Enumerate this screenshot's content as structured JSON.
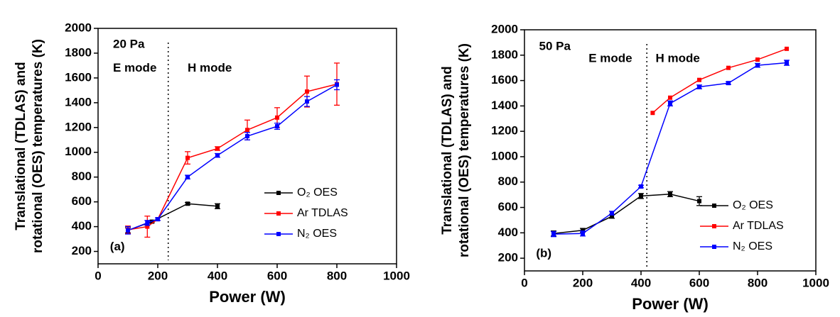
{
  "chart_data": [
    {
      "type": "line",
      "x_label": "Power (W)",
      "y_label": [
        "Translational (TDLAS) and",
        "rotational (OES) temperatures (K)"
      ],
      "xlim": [
        0,
        1000
      ],
      "xticks": [
        0,
        200,
        400,
        600,
        800,
        1000
      ],
      "ylim": [
        100,
        2000
      ],
      "yticks": [
        200,
        400,
        600,
        800,
        1000,
        1200,
        1400,
        1600,
        1800,
        2000
      ],
      "annotations": [
        "20 Pa",
        "E mode",
        "H mode",
        "(a)"
      ],
      "mode_boundary": 235,
      "legend": "lower right",
      "series": [
        {
          "name": "O₂ OES",
          "color": "#000000",
          "x": [
            100,
            180,
            300,
            400
          ],
          "values": [
            370,
            440,
            585,
            565
          ],
          "errors": [
            20,
            10,
            10,
            20
          ]
        },
        {
          "name": "Ar TDLAS",
          "color": "#ff0000",
          "x": [
            100,
            165,
            200,
            300,
            400,
            500,
            600,
            700,
            800
          ],
          "values": [
            375,
            400,
            460,
            955,
            1030,
            1180,
            1280,
            1490,
            1550
          ],
          "errors": [
            30,
            85,
            10,
            50,
            15,
            80,
            80,
            125,
            170
          ]
        },
        {
          "name": "N₂ OES",
          "color": "#0000ff",
          "x": [
            100,
            165,
            200,
            300,
            400,
            500,
            600,
            700,
            800
          ],
          "values": [
            370,
            430,
            460,
            800,
            975,
            1130,
            1210,
            1410,
            1545
          ],
          "errors": [
            30,
            20,
            10,
            15,
            15,
            30,
            25,
            40,
            40
          ]
        }
      ]
    },
    {
      "type": "line",
      "x_label": "Power (W)",
      "y_label": [
        "Translational (TDLAS) and",
        "rotational (OES) temperatures (K)"
      ],
      "xlim": [
        0,
        1000
      ],
      "xticks": [
        0,
        200,
        400,
        600,
        800,
        1000
      ],
      "ylim": [
        100,
        2000
      ],
      "yticks": [
        200,
        400,
        600,
        800,
        1000,
        1200,
        1400,
        1600,
        1800,
        2000
      ],
      "annotations": [
        "50 Pa",
        "E mode",
        "H mode",
        "(b)"
      ],
      "mode_boundary": 420,
      "legend": "lower right",
      "series": [
        {
          "name": "O₂ OES",
          "color": "#000000",
          "x": [
            100,
            200,
            300,
            400,
            500,
            600
          ],
          "values": [
            395,
            420,
            530,
            690,
            705,
            650
          ],
          "errors": [
            20,
            15,
            15,
            20,
            20,
            35
          ]
        },
        {
          "name": "Ar TDLAS",
          "color": "#ff0000",
          "x": [
            440,
            500,
            600,
            700,
            800,
            900
          ],
          "values": [
            1345,
            1465,
            1605,
            1700,
            1765,
            1850
          ]
        },
        {
          "name": "N₂ OES",
          "color": "#0000ff",
          "x": [
            100,
            200,
            300,
            400,
            500,
            600,
            700,
            800,
            900
          ],
          "values": [
            390,
            395,
            555,
            765,
            1420,
            1550,
            1580,
            1720,
            1740
          ],
          "errors": [
            20,
            20,
            15,
            10,
            20,
            15,
            10,
            15,
            20
          ]
        }
      ]
    }
  ]
}
